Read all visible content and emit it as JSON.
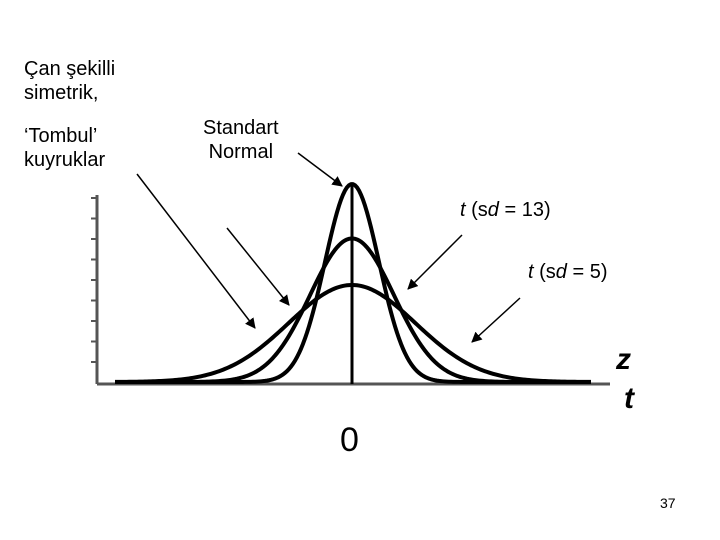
{
  "labels": {
    "bell_line1": "Çan şekilli",
    "bell_line2": "simetrik,",
    "tails_line1": "‘Tombul’",
    "tails_line2": "kuyruklar",
    "std_line1": "Standart",
    "std_line2": "Normal",
    "t13_t": "t",
    "t13_rest_pre": " (s",
    "t13_d": "d",
    "t13_rest_post": " = 13)",
    "t5_t": "t",
    "t5_rest_pre": " (s",
    "t5_d": "d",
    "t5_rest_post": " = 5)",
    "axis_z": "z",
    "axis_t": "t",
    "zero": "0",
    "page_number": "37"
  },
  "chart_data": {
    "type": "line",
    "series": [
      {
        "name": "Standart Normal",
        "peak": 1.0,
        "spread": 1.0
      },
      {
        "name": "t (sd = 13)",
        "peak": 0.725,
        "spread": 1.55
      },
      {
        "name": "t (sd = 5)",
        "peak": 0.49,
        "spread": 2.35
      }
    ]
  },
  "colors": {
    "stroke": "#000000",
    "axis_ticks": "#555555"
  }
}
